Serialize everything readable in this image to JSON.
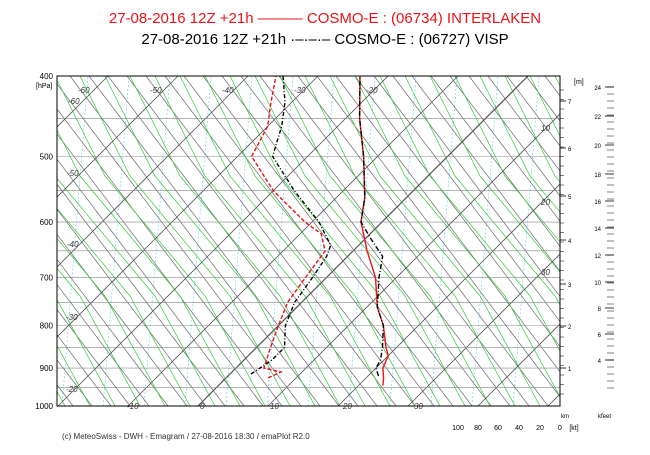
{
  "titles": {
    "line1": "27-08-2016  12Z +21h ——— COSMO-E : (06734)  INTERLAKEN",
    "line2": "27-08-2016  12Z +21h ·–·–·– COSMO-E : (06727)  VISP"
  },
  "footer": "(c) MeteoSwiss - DWH - Emagram / 27-08-2016  18:30 / emaPlot R2.0",
  "colors": {
    "interlaken": "#e8141b",
    "visp": "#000000",
    "dry_adiabat": "#6a6a6a",
    "moist_adiabat": "#33cc33",
    "mixing_ratio": "#66ccee",
    "isobar": "#888888",
    "isotherm": "#555555"
  },
  "chart_data": {
    "type": "line",
    "subtype": "emagram",
    "y_axis": {
      "label": "[hPa]",
      "scale": "log",
      "ticks": [
        400,
        500,
        600,
        700,
        800,
        900,
        1000
      ],
      "tick_labels": [
        "400",
        "500",
        "600",
        "700",
        "800",
        "900",
        "1000"
      ]
    },
    "x_axis": {
      "skewed_isotherm_labels": [
        "-60",
        "-50",
        "-40",
        "-30",
        "-20",
        "-10",
        "0",
        "10",
        "20",
        "30"
      ],
      "isotherm_labels_on_chart": [
        "-60",
        "-50",
        "-40",
        "-30",
        "-20",
        "10",
        "-10",
        "0",
        "10",
        "20",
        "30",
        "-30"
      ],
      "wind_scale_labels": [
        "100",
        "80",
        "60",
        "40",
        "20",
        "0",
        "[kt]"
      ],
      "wind_scale_unit": "km"
    },
    "moist_adiabat_labels": [
      "10",
      "20",
      "30"
    ],
    "right_axis_m": {
      "label": "[m]",
      "ticks": [
        "7",
        "6",
        "5",
        "4",
        "3",
        "2",
        "1"
      ]
    },
    "right_axis_kfeet": {
      "label": "kfeet",
      "ticks": [
        "24",
        "22",
        "20",
        "18",
        "16",
        "14",
        "12",
        "10",
        "8",
        "6",
        "4"
      ]
    },
    "series": [
      {
        "name": "INTERLAKEN",
        "station": "06734",
        "model": "COSMO-E",
        "temperature": [
          [
            945,
            23.5
          ],
          [
            925,
            22.5
          ],
          [
            900,
            21
          ],
          [
            870,
            20
          ],
          [
            850,
            18.5
          ],
          [
            800,
            15
          ],
          [
            760,
            11.5
          ],
          [
            700,
            7
          ],
          [
            650,
            2
          ],
          [
            600,
            -3
          ],
          [
            560,
            -6
          ],
          [
            500,
            -12
          ],
          [
            450,
            -18
          ],
          [
            400,
            -24
          ]
        ],
        "dewpoint": [
          [
            925,
            6
          ],
          [
            910,
            7
          ],
          [
            900,
            4
          ],
          [
            850,
            2
          ],
          [
            800,
            0
          ],
          [
            750,
            -2
          ],
          [
            700,
            -3
          ],
          [
            650,
            -4
          ],
          [
            620,
            -7
          ],
          [
            600,
            -11
          ],
          [
            550,
            -20
          ],
          [
            500,
            -28
          ],
          [
            460,
            -30
          ],
          [
            430,
            -33
          ],
          [
            400,
            -36
          ]
        ]
      },
      {
        "name": "VISP",
        "station": "06727",
        "model": "COSMO-E",
        "temperature": [
          [
            920,
            21.5
          ],
          [
            900,
            20
          ],
          [
            880,
            19.5
          ],
          [
            850,
            18
          ],
          [
            800,
            15
          ],
          [
            760,
            11.5
          ],
          [
            700,
            7.5
          ],
          [
            660,
            5
          ],
          [
            630,
            1
          ],
          [
            600,
            -3
          ],
          [
            560,
            -6
          ],
          [
            500,
            -12
          ],
          [
            450,
            -18
          ],
          [
            400,
            -24
          ]
        ],
        "dewpoint": [
          [
            915,
            3
          ],
          [
            880,
            4
          ],
          [
            850,
            4
          ],
          [
            800,
            1
          ],
          [
            750,
            -1
          ],
          [
            700,
            -2
          ],
          [
            660,
            -3
          ],
          [
            640,
            -4
          ],
          [
            600,
            -9
          ],
          [
            550,
            -17
          ],
          [
            500,
            -25
          ],
          [
            460,
            -28
          ],
          [
            430,
            -31
          ],
          [
            400,
            -35
          ]
        ]
      }
    ]
  }
}
